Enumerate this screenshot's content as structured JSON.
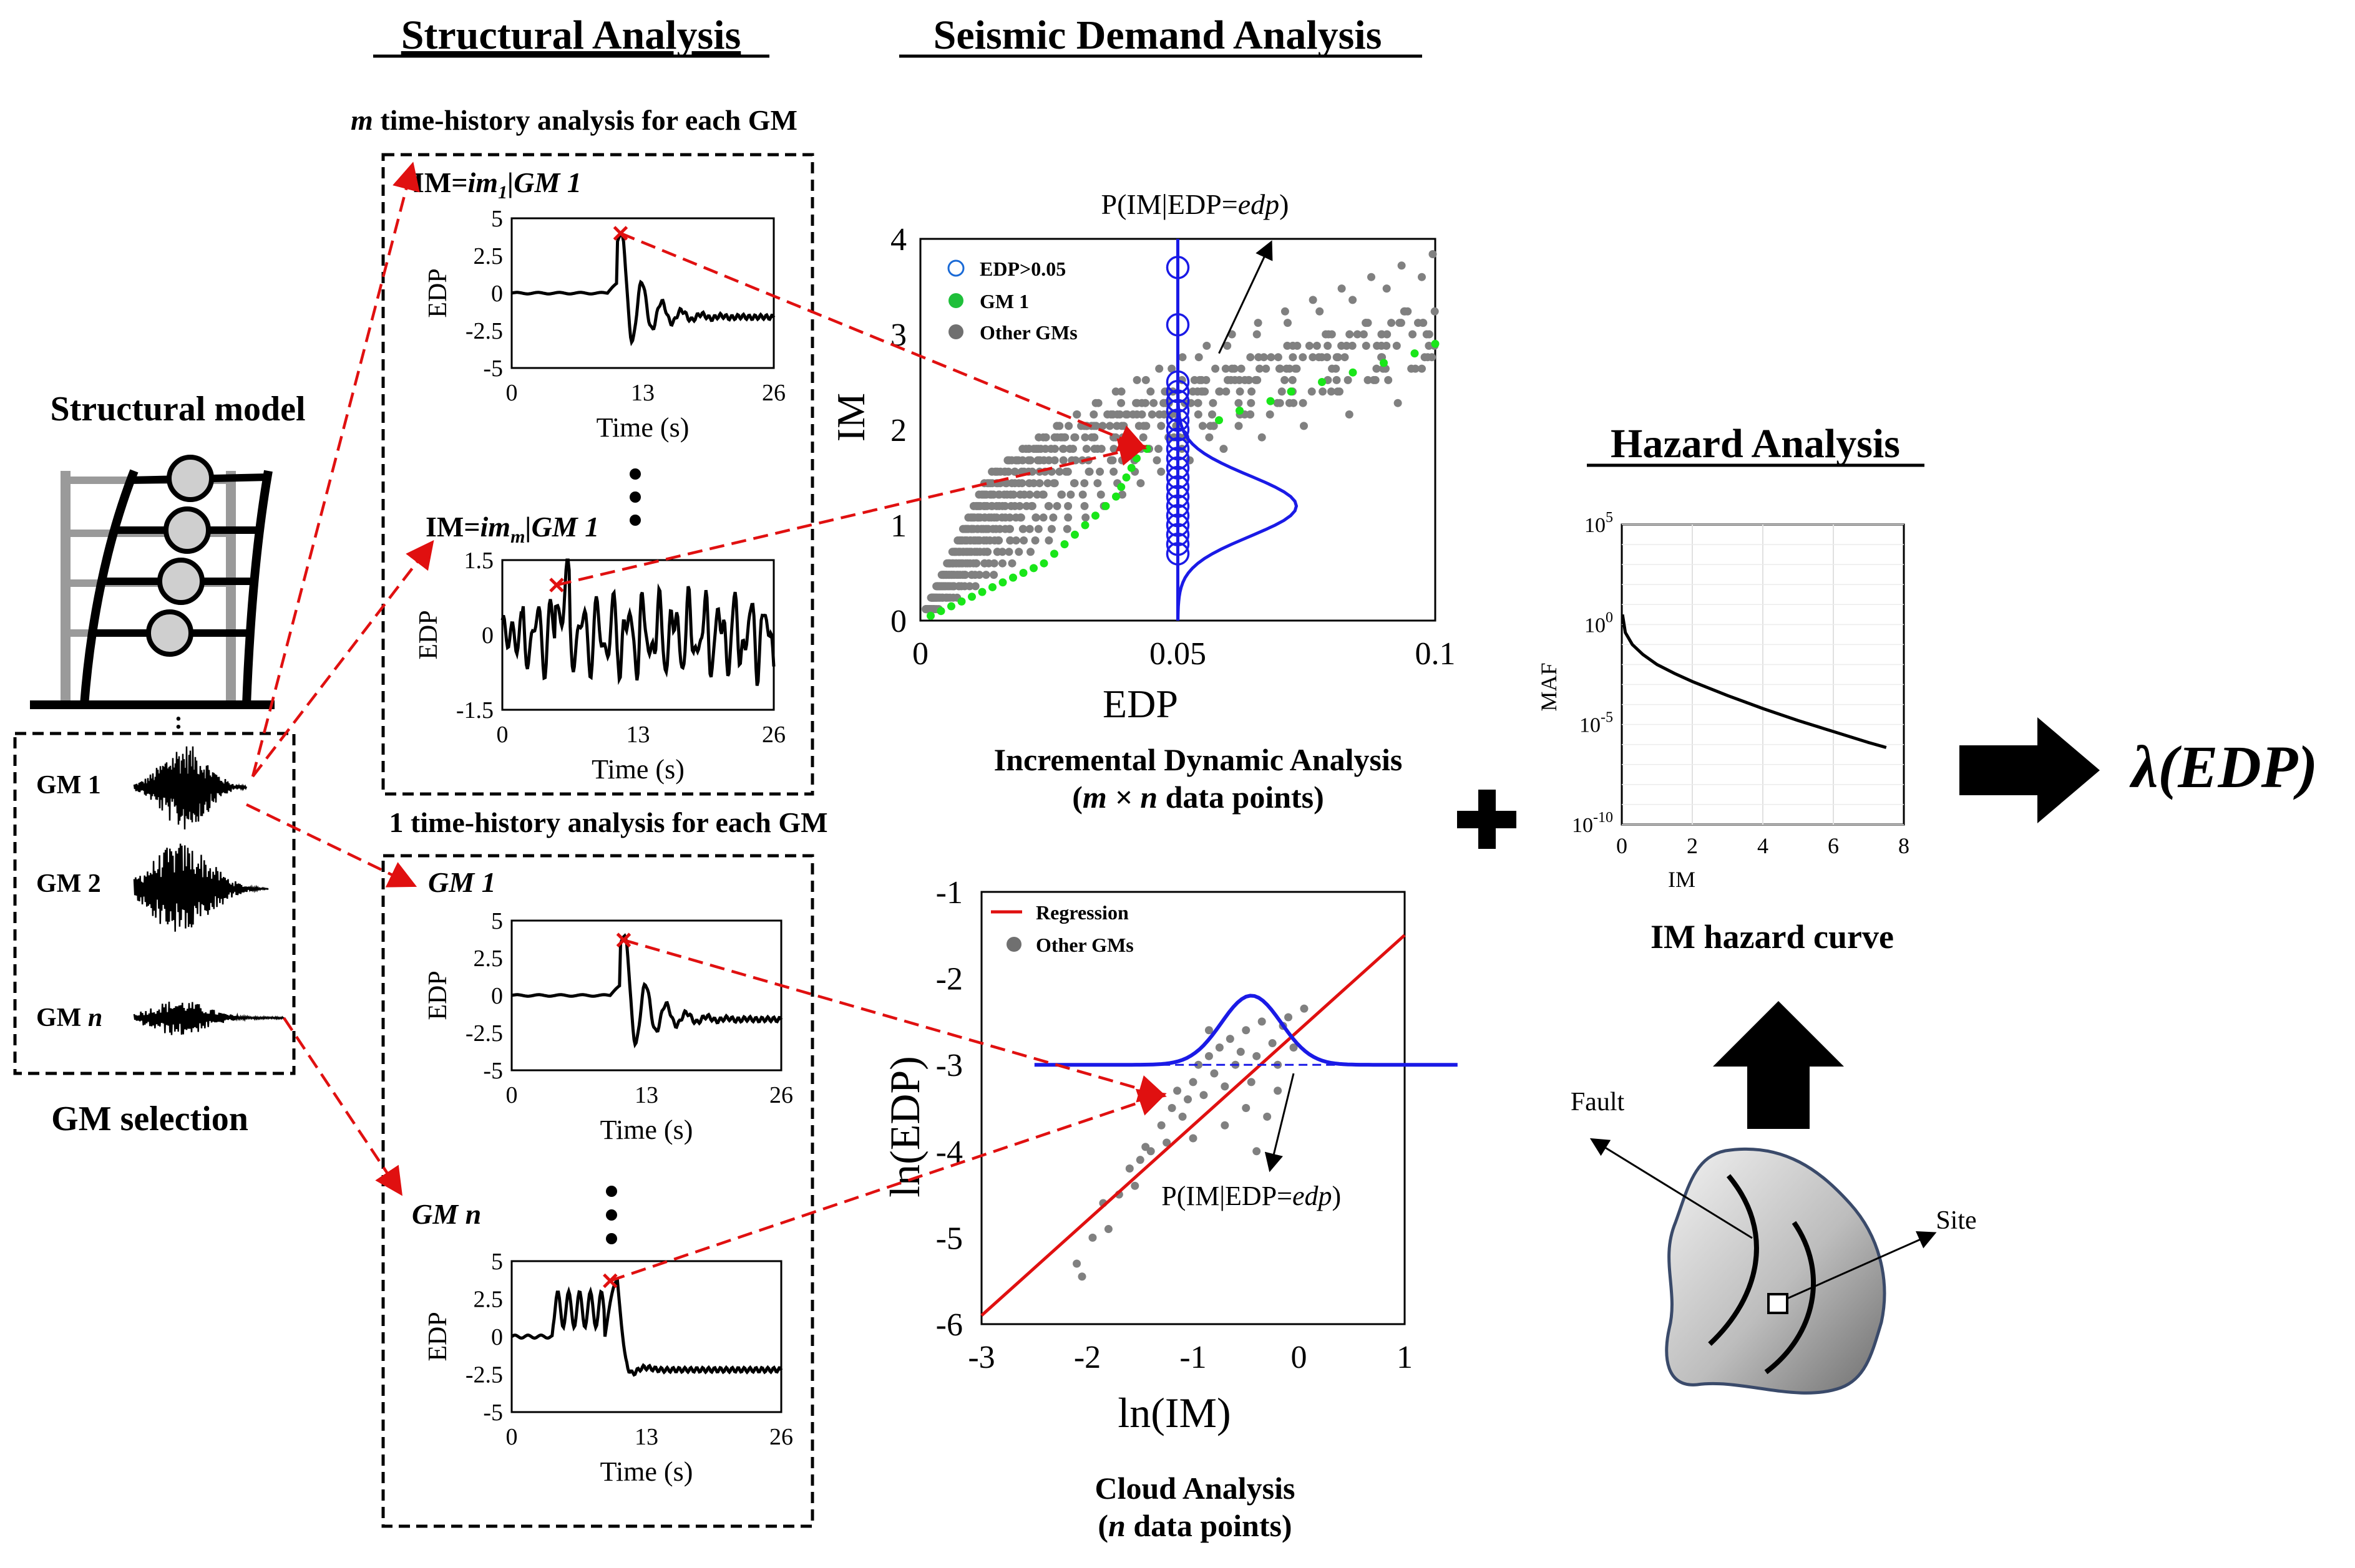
{
  "headings": {
    "structural": "Structural Analysis",
    "seismic": "Seismic Demand Analysis",
    "hazard": "Hazard Analysis"
  },
  "structural_model": {
    "title": "Structural model"
  },
  "gm_selection": {
    "title": "GM selection",
    "gm1": "GM 1",
    "gm2": "GM 2",
    "gmn_prefix": "GM ",
    "gmn_var": "n"
  },
  "top_group": {
    "caption_var": "m",
    "caption_rest": " time-history analysis for each GM",
    "label1_bold": "IM=",
    "label1_ital": "im",
    "label1_sub": "1",
    "label1_tail": "|GM 1",
    "labelm_bold": "IM=",
    "labelm_ital": "im",
    "labelm_sub": "m",
    "labelm_tail": "|GM 1"
  },
  "bottom_group": {
    "caption": "1 time-history analysis for each GM",
    "label1": "GM 1",
    "labeln": "GM n"
  },
  "small_plots": {
    "ylabel": "EDP",
    "xlabel": "Time (s)",
    "xticks": [
      "0",
      "13",
      "26"
    ],
    "yticks_a": [
      "5",
      "2.5",
      "0",
      "-2.5",
      "-5"
    ],
    "yticks_b": [
      "1.5",
      "0",
      "-1.5"
    ]
  },
  "ida": {
    "title": "Incremental Dynamic Analysis",
    "subtitle_open": "(",
    "subtitle_var": "m × n",
    "subtitle_rest": " data points)",
    "annotation_prefix": "P(IM|EDP=",
    "annotation_var": "edp",
    "annotation_suffix": ")"
  },
  "cloud": {
    "title": "Cloud Analysis",
    "subtitle_open": "(",
    "subtitle_var": "n",
    "subtitle_rest": " data points)",
    "annotation_prefix": "P(IM|EDP=",
    "annotation_var": "edp",
    "annotation_suffix": ")"
  },
  "hazard": {
    "caption": "IM hazard curve",
    "fault": "Fault",
    "site": "Site"
  },
  "result": {
    "label": "λ(EDP)"
  },
  "chart_data": [
    {
      "type": "scatter",
      "name": "ida",
      "xlabel": "EDP",
      "ylabel": "IM",
      "xlim": [
        0,
        0.1
      ],
      "ylim": [
        0,
        4
      ],
      "xticks": [
        "0",
        "0.05",
        "0.1"
      ],
      "yticks": [
        "0",
        "1",
        "2",
        "3",
        "4"
      ],
      "legend": [
        "EDP>0.05",
        "GM 1",
        "Other GMs"
      ],
      "legend_position": "top-left",
      "vertical_line_edp": 0.05,
      "gm1_points": [
        [
          0.002,
          0.05
        ],
        [
          0.004,
          0.1
        ],
        [
          0.006,
          0.15
        ],
        [
          0.008,
          0.2
        ],
        [
          0.01,
          0.25
        ],
        [
          0.012,
          0.3
        ],
        [
          0.014,
          0.35
        ],
        [
          0.016,
          0.4
        ],
        [
          0.018,
          0.45
        ],
        [
          0.02,
          0.5
        ],
        [
          0.022,
          0.55
        ],
        [
          0.024,
          0.6
        ],
        [
          0.026,
          0.7
        ],
        [
          0.028,
          0.8
        ],
        [
          0.03,
          0.9
        ],
        [
          0.032,
          1.0
        ],
        [
          0.034,
          1.1
        ],
        [
          0.036,
          1.2
        ],
        [
          0.038,
          1.3
        ],
        [
          0.039,
          1.4
        ],
        [
          0.04,
          1.5
        ],
        [
          0.041,
          1.6
        ],
        [
          0.042,
          1.7
        ],
        [
          0.044,
          1.8
        ],
        [
          0.058,
          2.1
        ],
        [
          0.062,
          2.2
        ],
        [
          0.068,
          2.3
        ],
        [
          0.072,
          2.4
        ],
        [
          0.078,
          2.5
        ],
        [
          0.084,
          2.6
        ],
        [
          0.09,
          2.7
        ],
        [
          0.096,
          2.8
        ],
        [
          0.1,
          2.9
        ]
      ],
      "edp_exceed_im": [
        0.7,
        0.8,
        0.9,
        1.0,
        1.1,
        1.2,
        1.3,
        1.4,
        1.5,
        1.6,
        1.7,
        1.8,
        1.9,
        2.0,
        2.1,
        2.2,
        2.3,
        2.4,
        2.5,
        3.1,
        3.7
      ]
    },
    {
      "type": "scatter",
      "name": "cloud",
      "xlabel": "ln(IM)",
      "ylabel": "ln(EDP)",
      "xlim": [
        -3,
        1
      ],
      "ylim": [
        -6,
        -1
      ],
      "xticks": [
        "-3",
        "-2",
        "-1",
        "0",
        "1"
      ],
      "yticks": [
        "-1",
        "-2",
        "-3",
        "-4",
        "-5",
        "-6"
      ],
      "legend": [
        "Regression",
        "Other GMs"
      ],
      "legend_position": "top-left",
      "regression": {
        "intercept": -2.6,
        "slope": 1.1
      },
      "threshold_ln_edp": -3,
      "points": [
        [
          -2.1,
          -5.3
        ],
        [
          -2.05,
          -5.45
        ],
        [
          -1.95,
          -5.0
        ],
        [
          -1.85,
          -4.6
        ],
        [
          -1.8,
          -4.9
        ],
        [
          -1.7,
          -4.5
        ],
        [
          -1.6,
          -4.2
        ],
        [
          -1.55,
          -4.4
        ],
        [
          -1.5,
          -4.1
        ],
        [
          -1.45,
          -3.95
        ],
        [
          -1.4,
          -4.0
        ],
        [
          -1.3,
          -3.7
        ],
        [
          -1.25,
          -3.9
        ],
        [
          -1.2,
          -3.5
        ],
        [
          -1.15,
          -3.3
        ],
        [
          -1.1,
          -3.6
        ],
        [
          -1.05,
          -3.4
        ],
        [
          -1.0,
          -3.2
        ],
        [
          -0.95,
          -3.0
        ],
        [
          -0.9,
          -3.35
        ],
        [
          -0.85,
          -2.9
        ],
        [
          -0.8,
          -3.1
        ],
        [
          -0.75,
          -2.8
        ],
        [
          -0.7,
          -3.25
        ],
        [
          -0.65,
          -2.7
        ],
        [
          -0.6,
          -3.0
        ],
        [
          -0.55,
          -2.85
        ],
        [
          -0.5,
          -2.6
        ],
        [
          -0.45,
          -3.2
        ],
        [
          -0.4,
          -2.9
        ],
        [
          -0.35,
          -2.5
        ],
        [
          -0.3,
          -3.6
        ],
        [
          -0.25,
          -2.75
        ],
        [
          -0.2,
          -3.0
        ],
        [
          -0.15,
          -2.55
        ],
        [
          -0.1,
          -2.45
        ],
        [
          -0.05,
          -2.8
        ],
        [
          0.05,
          -2.35
        ],
        [
          -0.7,
          -3.7
        ],
        [
          -0.5,
          -3.5
        ],
        [
          -0.4,
          -4.0
        ],
        [
          -0.2,
          -3.3
        ],
        [
          -1.0,
          -3.85
        ],
        [
          -0.85,
          -2.6
        ]
      ]
    },
    {
      "type": "line",
      "name": "hazard",
      "xlabel": "IM",
      "ylabel": "MAF",
      "xlim": [
        0,
        8
      ],
      "ylim_log10": [
        -10,
        5
      ],
      "xticks": [
        "0",
        "2",
        "4",
        "6",
        "8"
      ],
      "yticks_log10": [
        "10^5",
        "10^0",
        "10^-5",
        "10^-10"
      ],
      "x": [
        0.02,
        0.1,
        0.3,
        0.6,
        1,
        1.5,
        2,
        3,
        4,
        5,
        6,
        7,
        7.5
      ],
      "log10_y": [
        0.5,
        -0.4,
        -1.0,
        -1.5,
        -2.0,
        -2.45,
        -2.85,
        -3.55,
        -4.2,
        -4.8,
        -5.35,
        -5.9,
        -6.15
      ]
    }
  ]
}
